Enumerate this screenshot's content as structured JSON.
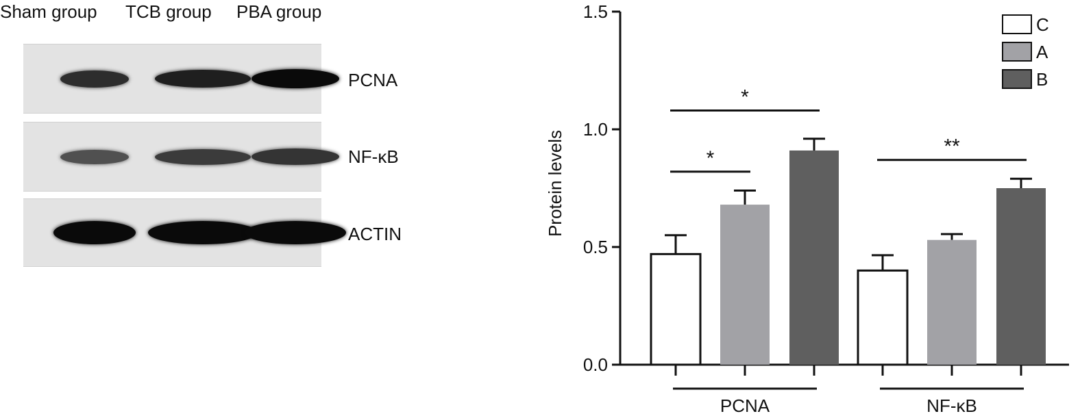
{
  "western_blot": {
    "lanes": [
      "Sham group",
      "TCB group",
      "PBA group"
    ],
    "rows": [
      {
        "label": "PCNA",
        "intensity": [
          0.75,
          0.85,
          1.0
        ]
      },
      {
        "label": "NF-κB",
        "intensity": [
          0.5,
          0.65,
          0.7
        ]
      },
      {
        "label": "ACTIN",
        "intensity": [
          1.0,
          1.0,
          1.0
        ]
      }
    ]
  },
  "chart_data": {
    "type": "bar",
    "title": "",
    "xlabel": "",
    "ylabel": "Protein levels",
    "ylim": [
      0,
      1.5
    ],
    "yticks": [
      "0.0",
      "0.5",
      "1.0",
      "1.5"
    ],
    "categories": [
      "PCNA",
      "NF-κB"
    ],
    "series": [
      {
        "name": "C",
        "values": [
          0.47,
          0.4
        ],
        "errors": [
          0.08,
          0.065
        ],
        "color": "#ffffff"
      },
      {
        "name": "A",
        "values": [
          0.68,
          0.53
        ],
        "errors": [
          0.06,
          0.025
        ],
        "color": "#a2a2a6"
      },
      {
        "name": "B",
        "values": [
          0.91,
          0.75
        ],
        "errors": [
          0.05,
          0.04
        ],
        "color": "#5f5f5f"
      }
    ],
    "legend": "top-right",
    "grid": false,
    "significance": [
      {
        "category": 0,
        "from": 0,
        "to": 1,
        "y": 0.82,
        "label": "*"
      },
      {
        "category": 0,
        "from": 0,
        "to": 2,
        "y": 1.08,
        "label": "*"
      },
      {
        "category": 1,
        "from": 0,
        "to": 2,
        "y": 0.87,
        "label": "**"
      }
    ]
  }
}
